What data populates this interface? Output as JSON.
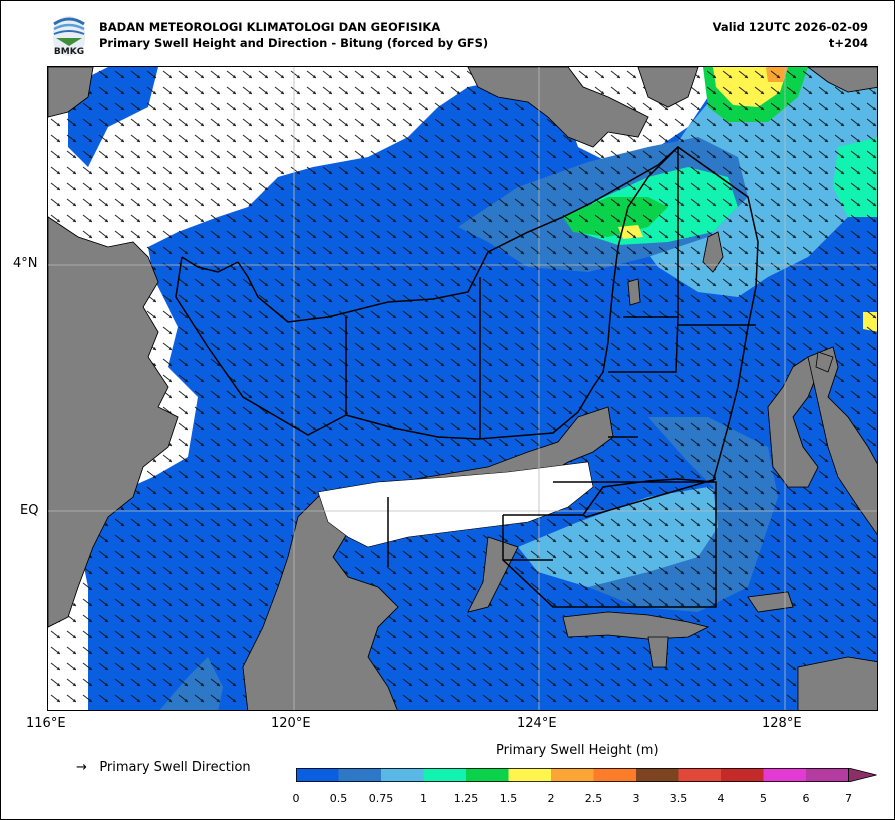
{
  "header": {
    "agency": "BADAN METEOROLOGI KLIMATOLOGI DAN GEOFISIKA",
    "subtitle": "Primary Swell Height and Direction - Bitung (forced by GFS)",
    "valid": "Valid 12UTC 2026-02-09",
    "lead": "t+204",
    "logo_text": "BMKG"
  },
  "map": {
    "region": "Bitung",
    "lon_ticks": [
      "116°E",
      "120°E",
      "124°E",
      "128°E"
    ],
    "lat_ticks": [
      "4°N",
      "EQ"
    ],
    "land_color": "#808080",
    "missing_color": "#ffffff",
    "grid": true
  },
  "legend": {
    "direction_symbol": "→",
    "direction_label": "Primary Swell Direction",
    "colorbar_title": "Primary Swell Height (m)",
    "levels": [
      "0",
      "0.5",
      "0.75",
      "1",
      "1.25",
      "1.5",
      "2",
      "2.5",
      "3",
      "3.5",
      "4",
      "5",
      "6",
      "7"
    ],
    "colors": [
      "#0a5fe0",
      "#2e78c8",
      "#5ab8e6",
      "#12f2b0",
      "#0ad24a",
      "#fff54e",
      "#fba534",
      "#fb7d2a",
      "#7d4422",
      "#e2483a",
      "#c52a2a",
      "#e23ad2",
      "#b43ca0"
    ],
    "extend_color": "#8a2f68"
  }
}
